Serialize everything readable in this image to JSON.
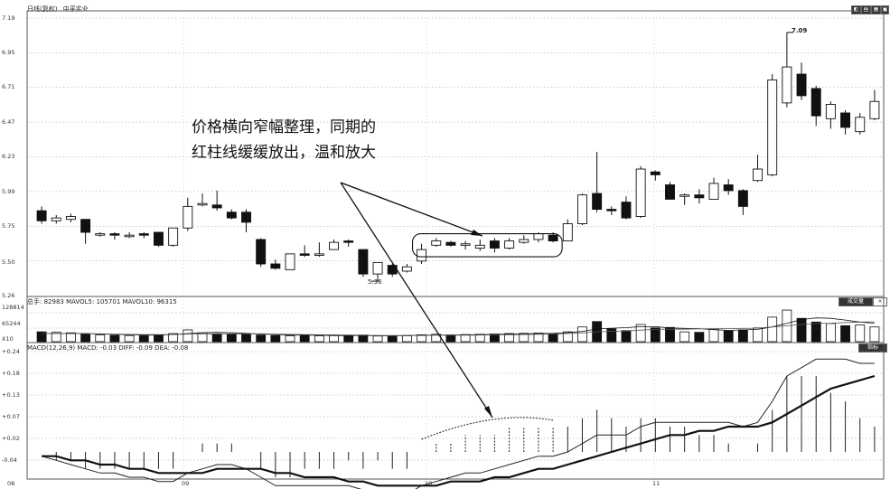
{
  "header": {
    "title": "日线(复权)",
    "stock_name": "中孚实业",
    "buttons": [
      "◧",
      "▤",
      "▦",
      "▣"
    ]
  },
  "price_axis": [
    "7.19",
    "6.95",
    "6.71",
    "6.47",
    "6.23",
    "5.99",
    "5.75",
    "5.50",
    "5.26"
  ],
  "annotations": {
    "high_label": "7.09",
    "low_label": "5.36",
    "note_line1": "价格横向窄幅整理，同期的",
    "note_line2": "红柱线缓缓放出，温和放大"
  },
  "volume_panel": {
    "info": "总手: 82983 MAVOL5: 105701 MAVOL10: 96315",
    "axis": [
      "128814",
      "65244",
      "X10"
    ],
    "button": "成交量"
  },
  "macd_panel": {
    "info": "MACD(12,26,9) MACD: -0.03 DIFF: -0.09 DEA: -0.08",
    "axis": [
      "+0.24",
      "+0.18",
      "+0.13",
      "+0.07",
      "+0.02",
      "-0.04"
    ],
    "button": "指标"
  },
  "dates": [
    "08",
    "09",
    "10",
    "11"
  ],
  "colors": {
    "up": "#ffffff",
    "down": "#111111",
    "grid": "#9a9a9a",
    "border": "#555555"
  },
  "chart_data": {
    "type": "candlestick",
    "ylim": [
      5.26,
      7.19
    ],
    "candles": [
      [
        5.85,
        5.78,
        5.88,
        5.76
      ],
      [
        5.78,
        5.8,
        5.82,
        5.76
      ],
      [
        5.79,
        5.81,
        5.83,
        5.77
      ],
      [
        5.79,
        5.7,
        5.79,
        5.62
      ],
      [
        5.68,
        5.69,
        5.7,
        5.67
      ],
      [
        5.69,
        5.68,
        5.7,
        5.65
      ],
      [
        5.67,
        5.68,
        5.7,
        5.66
      ],
      [
        5.69,
        5.68,
        5.7,
        5.66
      ],
      [
        5.7,
        5.61,
        5.7,
        5.6
      ],
      [
        5.61,
        5.73,
        5.73,
        5.6
      ],
      [
        5.73,
        5.88,
        5.94,
        5.71
      ],
      [
        5.89,
        5.9,
        5.97,
        5.88
      ],
      [
        5.89,
        5.87,
        5.99,
        5.85
      ],
      [
        5.84,
        5.8,
        5.86,
        5.79
      ],
      [
        5.84,
        5.77,
        5.86,
        5.7
      ],
      [
        5.65,
        5.48,
        5.66,
        5.46
      ],
      [
        5.48,
        5.45,
        5.51,
        5.44
      ],
      [
        5.44,
        5.55,
        5.55,
        5.44
      ],
      [
        5.55,
        5.54,
        5.61,
        5.53
      ],
      [
        5.54,
        5.55,
        5.63,
        5.53
      ],
      [
        5.58,
        5.63,
        5.65,
        5.58
      ],
      [
        5.64,
        5.63,
        5.65,
        5.6
      ],
      [
        5.58,
        5.41,
        5.58,
        5.39
      ],
      [
        5.41,
        5.49,
        5.49,
        5.36
      ],
      [
        5.47,
        5.41,
        5.48,
        5.39
      ],
      [
        5.43,
        5.46,
        5.48,
        5.42
      ],
      [
        5.5,
        5.58,
        5.62,
        5.48
      ],
      [
        5.61,
        5.64,
        5.66,
        5.6
      ],
      [
        5.63,
        5.61,
        5.64,
        5.6
      ],
      [
        5.61,
        5.62,
        5.64,
        5.58
      ],
      [
        5.59,
        5.61,
        5.65,
        5.57
      ],
      [
        5.64,
        5.59,
        5.66,
        5.56
      ],
      [
        5.59,
        5.64,
        5.66,
        5.58
      ],
      [
        5.63,
        5.65,
        5.68,
        5.62
      ],
      [
        5.65,
        5.69,
        5.7,
        5.63
      ],
      [
        5.68,
        5.64,
        5.7,
        5.63
      ],
      [
        5.64,
        5.76,
        5.79,
        5.64
      ],
      [
        5.76,
        5.96,
        5.97,
        5.75
      ],
      [
        5.97,
        5.86,
        6.26,
        5.84
      ],
      [
        5.86,
        5.85,
        5.88,
        5.82
      ],
      [
        5.91,
        5.8,
        5.95,
        5.79
      ],
      [
        5.81,
        6.14,
        6.16,
        5.8
      ],
      [
        6.12,
        6.1,
        6.13,
        6.06
      ],
      [
        6.03,
        5.93,
        6.05,
        5.93
      ],
      [
        5.95,
        5.96,
        5.97,
        5.89
      ],
      [
        5.96,
        5.94,
        6.0,
        5.9
      ],
      [
        5.93,
        6.04,
        6.08,
        5.93
      ],
      [
        6.03,
        5.99,
        6.07,
        5.96
      ],
      [
        5.99,
        5.88,
        6.0,
        5.82
      ],
      [
        6.06,
        6.14,
        6.24,
        6.05
      ],
      [
        6.1,
        6.76,
        6.8,
        6.09
      ],
      [
        6.6,
        6.85,
        7.09,
        6.57
      ],
      [
        6.8,
        6.65,
        6.88,
        6.62
      ],
      [
        6.7,
        6.51,
        6.72,
        6.44
      ],
      [
        6.49,
        6.59,
        6.61,
        6.42
      ],
      [
        6.53,
        6.43,
        6.55,
        6.38
      ],
      [
        6.4,
        6.5,
        6.53,
        6.38
      ],
      [
        6.49,
        6.61,
        6.69,
        6.48
      ]
    ],
    "volume": {
      "series": [
        40000,
        38000,
        36000,
        30000,
        28000,
        26000,
        25000,
        24000,
        27000,
        33000,
        48000,
        36000,
        31000,
        30000,
        32000,
        27000,
        25000,
        24000,
        26000,
        24000,
        25000,
        24000,
        27000,
        23000,
        22000,
        24000,
        28000,
        30000,
        27000,
        29000,
        30000,
        31000,
        33000,
        34000,
        35000,
        33000,
        40000,
        60000,
        82000,
        52000,
        45000,
        70000,
        56000,
        58000,
        40000,
        38000,
        52000,
        44000,
        48000,
        56000,
        100000,
        128814,
        95000,
        80000,
        74000,
        65000,
        68000,
        60000
      ],
      "mavol5": [
        33000,
        33000,
        33000,
        33000,
        31000,
        30000,
        28000,
        27000,
        27000,
        29000,
        33000,
        36000,
        38000,
        37000,
        34000,
        31000,
        29000,
        27000,
        27000,
        26000,
        25000,
        25000,
        25000,
        24000,
        24000,
        25000,
        26000,
        27000,
        27000,
        28000,
        29000,
        30000,
        31000,
        32000,
        33000,
        34000,
        37000,
        42000,
        52000,
        55000,
        57000,
        61000,
        61000,
        56000,
        54000,
        53000,
        49000,
        46000,
        48000,
        50000,
        60000,
        75000,
        90000,
        97000,
        95000,
        88000,
        80000,
        75000
      ],
      "mavol10": [
        33000,
        33000,
        33000,
        33000,
        32000,
        31000,
        30000,
        29000,
        29000,
        29000,
        31000,
        32000,
        32000,
        32000,
        32000,
        32000,
        31000,
        30000,
        29000,
        28000,
        28000,
        27000,
        26000,
        25000,
        25000,
        25000,
        25000,
        26000,
        26000,
        26000,
        27000,
        28000,
        28000,
        29000,
        30000,
        31000,
        33000,
        36000,
        40000,
        42000,
        44000,
        47000,
        50000,
        51000,
        51000,
        52000,
        53000,
        53000,
        54000,
        55000,
        60000,
        65000,
        70000,
        74000,
        75000,
        78000,
        80000,
        81000
      ]
    },
    "macd": {
      "diff": [
        -0.01,
        -0.02,
        -0.03,
        -0.04,
        -0.05,
        -0.05,
        -0.06,
        -0.06,
        -0.07,
        -0.07,
        -0.05,
        -0.04,
        -0.03,
        -0.03,
        -0.04,
        -0.06,
        -0.08,
        -0.08,
        -0.08,
        -0.08,
        -0.08,
        -0.08,
        -0.09,
        -0.09,
        -0.1,
        -0.1,
        -0.08,
        -0.07,
        -0.06,
        -0.05,
        -0.05,
        -0.04,
        -0.03,
        -0.02,
        -0.01,
        -0.01,
        0.0,
        0.02,
        0.04,
        0.04,
        0.04,
        0.06,
        0.07,
        0.07,
        0.07,
        0.07,
        0.07,
        0.07,
        0.06,
        0.07,
        0.12,
        0.18,
        0.2,
        0.22,
        0.22,
        0.22,
        0.21,
        0.21
      ],
      "dea": [
        -0.01,
        -0.01,
        -0.02,
        -0.02,
        -0.03,
        -0.03,
        -0.04,
        -0.04,
        -0.05,
        -0.05,
        -0.05,
        -0.05,
        -0.04,
        -0.04,
        -0.04,
        -0.04,
        -0.05,
        -0.05,
        -0.06,
        -0.06,
        -0.06,
        -0.07,
        -0.07,
        -0.08,
        -0.08,
        -0.08,
        -0.08,
        -0.08,
        -0.07,
        -0.07,
        -0.07,
        -0.06,
        -0.06,
        -0.05,
        -0.04,
        -0.04,
        -0.03,
        -0.02,
        -0.01,
        0.0,
        0.01,
        0.02,
        0.03,
        0.04,
        0.04,
        0.05,
        0.05,
        0.06,
        0.06,
        0.06,
        0.07,
        0.09,
        0.11,
        0.13,
        0.15,
        0.16,
        0.17,
        0.18
      ],
      "hist": [
        0.0,
        -0.02,
        -0.02,
        -0.04,
        -0.04,
        -0.04,
        -0.04,
        -0.04,
        -0.04,
        -0.04,
        0.0,
        0.02,
        0.02,
        0.02,
        0.0,
        -0.04,
        -0.06,
        -0.06,
        -0.04,
        -0.04,
        -0.04,
        -0.02,
        -0.04,
        -0.02,
        -0.04,
        -0.04,
        0.0,
        0.02,
        0.02,
        0.04,
        0.04,
        0.04,
        0.06,
        0.06,
        0.06,
        0.06,
        0.06,
        0.08,
        0.1,
        0.08,
        0.06,
        0.08,
        0.08,
        0.06,
        0.06,
        0.04,
        0.04,
        0.02,
        0.0,
        0.02,
        0.1,
        0.18,
        0.18,
        0.18,
        0.14,
        0.12,
        0.08,
        0.06
      ],
      "ylim": [
        -0.06,
        0.24
      ]
    }
  }
}
